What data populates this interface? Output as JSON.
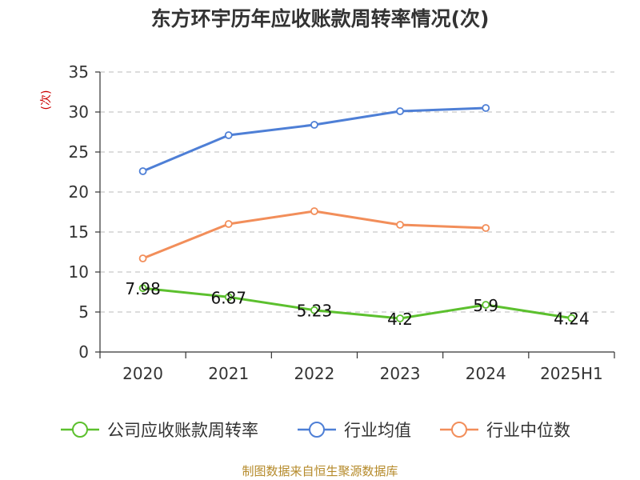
{
  "chart_data": {
    "type": "line",
    "title": "东方环宇历年应收账款周转率情况(次)",
    "ylabel": "(次)",
    "categories": [
      "2020",
      "2021",
      "2022",
      "2023",
      "2024",
      "2025H1"
    ],
    "ylim": [
      0,
      35
    ],
    "yticks": [
      0,
      5,
      10,
      15,
      20,
      25,
      30,
      35
    ],
    "grid": true,
    "legend_position": "bottom",
    "series": [
      {
        "name": "公司应收账款周转率",
        "color": "#5cc02e",
        "values": [
          7.98,
          6.87,
          5.23,
          4.2,
          5.9,
          4.24
        ],
        "labels": [
          "7.98",
          "6.87",
          "5.23",
          "4.2",
          "5.9",
          "4.24"
        ]
      },
      {
        "name": "行业均值",
        "color": "#4e7fd6",
        "values": [
          22.6,
          27.1,
          28.4,
          30.1,
          30.5,
          null
        ]
      },
      {
        "name": "行业中位数",
        "color": "#f28e5a",
        "values": [
          11.7,
          16.0,
          17.6,
          15.9,
          15.5,
          null
        ]
      }
    ],
    "source": "制图数据来自恒生聚源数据库"
  }
}
